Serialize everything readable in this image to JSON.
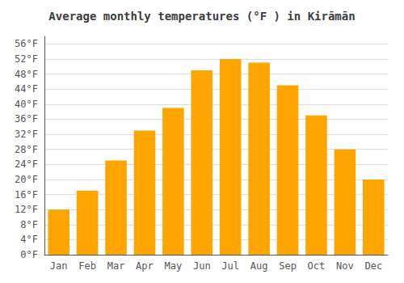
{
  "chart_data": {
    "type": "bar",
    "title": "Average monthly temperatures (°F ) in Kirāmān",
    "categories": [
      "Jan",
      "Feb",
      "Mar",
      "Apr",
      "May",
      "Jun",
      "Jul",
      "Aug",
      "Sep",
      "Oct",
      "Nov",
      "Dec"
    ],
    "values": [
      12,
      17,
      25,
      33,
      39,
      49,
      52,
      51,
      45,
      37,
      28,
      20
    ],
    "color": "#FFA500",
    "ylim": [
      0,
      58
    ],
    "yticks": [
      {
        "value": 0,
        "label": "0°F"
      },
      {
        "value": 4,
        "label": "4°F"
      },
      {
        "value": 8,
        "label": "8°F"
      },
      {
        "value": 12,
        "label": "12°F"
      },
      {
        "value": 16,
        "label": "16°F"
      },
      {
        "value": 20,
        "label": "20°F"
      },
      {
        "value": 24,
        "label": "24°F"
      },
      {
        "value": 28,
        "label": "28°F"
      },
      {
        "value": 32,
        "label": "32°F"
      },
      {
        "value": 36,
        "label": "36°F"
      },
      {
        "value": 40,
        "label": "40°F"
      },
      {
        "value": 44,
        "label": "44°F"
      },
      {
        "value": 48,
        "label": "48°F"
      },
      {
        "value": 52,
        "label": "52°F"
      },
      {
        "value": 56,
        "label": "56°F"
      }
    ],
    "grid": true
  }
}
